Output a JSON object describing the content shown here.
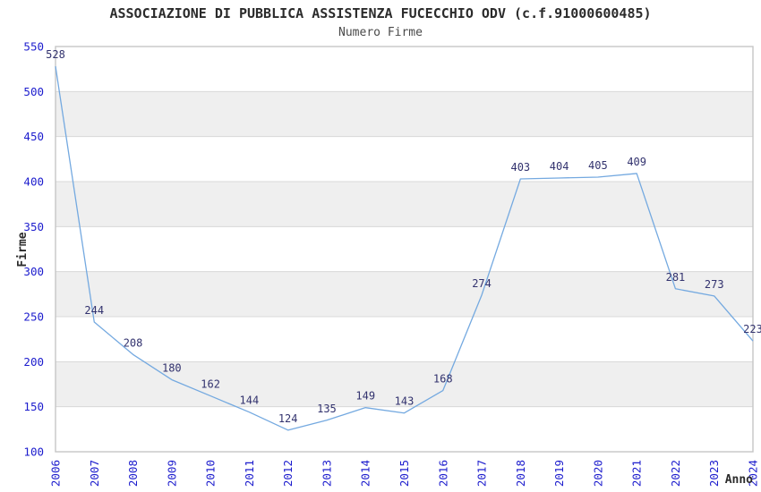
{
  "chart_data": {
    "type": "line",
    "title": "ASSOCIAZIONE DI PUBBLICA ASSISTENZA FUCECCHIO ODV (c.f.91000600485)",
    "subtitle": "Numero Firme",
    "xlabel": "Anno",
    "ylabel": "Firme",
    "categories": [
      2006,
      2007,
      2008,
      2009,
      2010,
      2011,
      2012,
      2013,
      2014,
      2015,
      2016,
      2017,
      2018,
      2019,
      2020,
      2021,
      2022,
      2023,
      2024
    ],
    "series": [
      {
        "name": "Numero Firme",
        "values": [
          528,
          244,
          208,
          180,
          162,
          144,
          124,
          135,
          149,
          143,
          168,
          274,
          403,
          404,
          405,
          409,
          281,
          273,
          223
        ]
      }
    ],
    "ylim": [
      100,
      550
    ],
    "ytick_step": 50,
    "yticks": [
      100,
      150,
      200,
      250,
      300,
      350,
      400,
      450,
      500,
      550
    ],
    "grid": "horizontal gridlines with alternating shaded bands",
    "legend": "none",
    "show_point_labels": true,
    "x_tick_rotation_deg": -90,
    "colors": {
      "line": "#74a9e0",
      "tick_label": "#1c1ccd",
      "point_label": "#32326e",
      "band": "#efefef",
      "gridline": "#d8d8d8",
      "plot_border": "#c6c6c6",
      "title_text": "#2b2b2b"
    }
  }
}
